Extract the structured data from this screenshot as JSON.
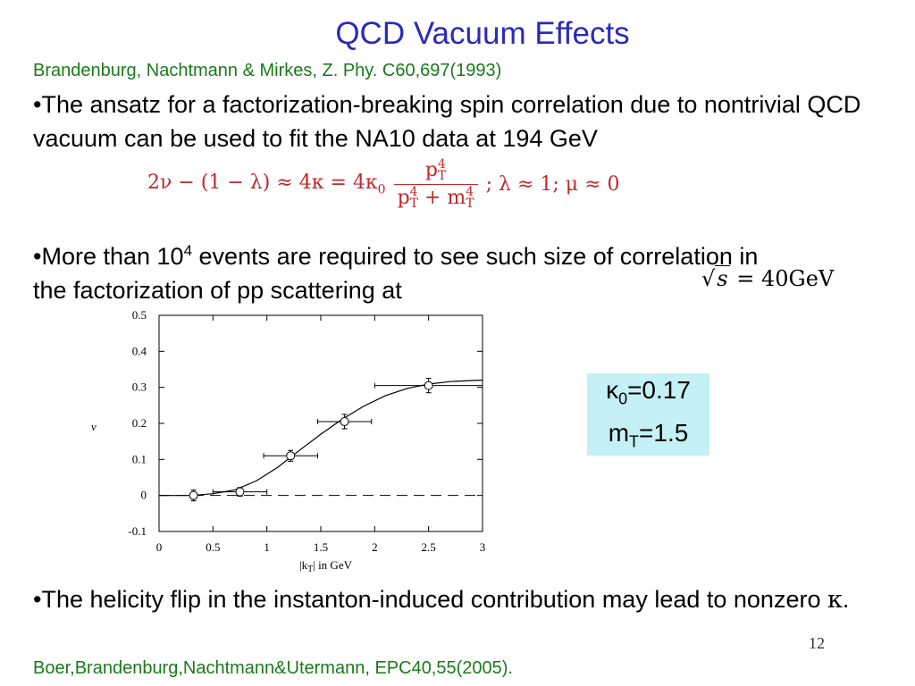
{
  "slide": {
    "title": "QCD Vacuum Effects",
    "reference_top": "Brandenburg, Nachtmann & Mirkes, Z. Phy. C60,697(1993)",
    "bullet1": "•The ansatz for a factorization-breaking spin correlation due to nontrivial QCD vacuum can be used to fit the NA10 data at 194 GeV",
    "equation1": {
      "lhs": "2ν − (1 − λ) ≈ 4κ = 4κ",
      "sub0": "0",
      "num_p": "p",
      "num_sup": "4",
      "num_sub": "T",
      "den_p": "p",
      "den_p_sup": "4",
      "den_p_sub": "T",
      "den_plus": " + m",
      "den_m_sup": "4",
      "den_m_sub": "T",
      "rhs": "; λ ≈ 1; μ ≈ 0"
    },
    "bullet2": {
      "part1": "•More than 10",
      "sup": "4",
      "part2": " events are required to see such size of correlation in the factorization of pp scattering  at"
    },
    "equation2": {
      "sqrt": "√",
      "s": "s",
      "rest": " = 40GeV"
    },
    "params": {
      "kappa": "κ",
      "kappa_sub": "0",
      "kappa_val": "=0.17",
      "m": "m",
      "m_sub": "T",
      "m_val": "=1.5"
    },
    "bullet3": {
      "text": "•The helicity flip in the instanton-induced contribution may lead to nonzero ",
      "kappa": "κ",
      "end": "."
    },
    "page_number": "12",
    "reference_bottom": "Boer,Brandenburg,Nachtmann&Utermann, EPC40,55(2005)."
  },
  "chart_data": {
    "type": "scatter",
    "ylabel": "ν",
    "xlabel_main": "|k",
    "xlabel_sub": "T",
    "xlabel_rest": "| in GeV",
    "xlim": [
      0,
      3
    ],
    "ylim": [
      -0.1,
      0.5
    ],
    "x_ticks": [
      "0",
      "0.5",
      "1",
      "1.5",
      "2",
      "2.5",
      "3"
    ],
    "y_ticks": [
      "-0.1",
      "0",
      "0.1",
      "0.2",
      "0.3",
      "0.4",
      "0.5"
    ],
    "points": [
      {
        "x": 0.32,
        "y": 0.0,
        "xerr": [
          0.0,
          0.0
        ],
        "yerr": 0.015
      },
      {
        "x": 0.75,
        "y": 0.01,
        "xerr": [
          0.25,
          0.25
        ],
        "yerr": 0.012
      },
      {
        "x": 1.22,
        "y": 0.11,
        "xerr": [
          0.25,
          0.25
        ],
        "yerr": 0.015
      },
      {
        "x": 1.72,
        "y": 0.205,
        "xerr": [
          0.25,
          0.25
        ],
        "yerr": 0.02
      },
      {
        "x": 2.5,
        "y": 0.305,
        "xerr": [
          0.5,
          0.5
        ],
        "yerr": 0.02
      }
    ],
    "fit_curve": [
      [
        0.0,
        0.0
      ],
      [
        0.3,
        0.0
      ],
      [
        0.5,
        0.005
      ],
      [
        0.7,
        0.015
      ],
      [
        0.9,
        0.04
      ],
      [
        1.1,
        0.078
      ],
      [
        1.3,
        0.125
      ],
      [
        1.5,
        0.17
      ],
      [
        1.7,
        0.212
      ],
      [
        1.9,
        0.248
      ],
      [
        2.1,
        0.277
      ],
      [
        2.3,
        0.297
      ],
      [
        2.5,
        0.309
      ],
      [
        2.7,
        0.316
      ],
      [
        2.9,
        0.319
      ],
      [
        3.0,
        0.32
      ]
    ],
    "baseline_y": 0,
    "baseline_style": "dashed"
  }
}
